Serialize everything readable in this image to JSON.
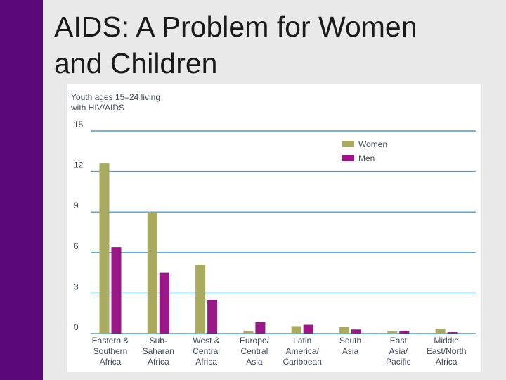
{
  "slide": {
    "title_line1": "AIDS: A Problem for Women",
    "title_line2": "and Children"
  },
  "colors": {
    "sidebar": "#5b087a",
    "women": "#a8ab60",
    "men": "#9a1787",
    "gridline": "#4a9fd3",
    "text": "#3d4a5a"
  },
  "chart_data": {
    "type": "bar",
    "ylabel_line1": "Youth ages 15–24 living",
    "ylabel_line2": "with HIV/AIDS",
    "ylim": [
      0,
      15
    ],
    "yticks": [
      "0",
      "3",
      "6",
      "9",
      "12",
      "15"
    ],
    "grid": true,
    "legend_position": "top-right",
    "categories": [
      [
        "Eastern &",
        "Southern",
        "Africa"
      ],
      [
        "Sub-",
        "Saharan",
        "Africa"
      ],
      [
        "West &",
        "Central",
        "Africa"
      ],
      [
        "Europe/",
        "Central",
        "Asia"
      ],
      [
        "Latin",
        "America/",
        "Caribbean"
      ],
      [
        "South",
        "Asia"
      ],
      [
        "East",
        "Asia/",
        "Pacific"
      ],
      [
        "Middle",
        "East/North",
        "Africa"
      ]
    ],
    "series": [
      {
        "name": "Women",
        "values": [
          12.6,
          9.0,
          5.1,
          0.2,
          0.55,
          0.5,
          0.2,
          0.35
        ]
      },
      {
        "name": "Men",
        "values": [
          6.4,
          4.5,
          2.5,
          0.85,
          0.65,
          0.3,
          0.2,
          0.1
        ]
      }
    ]
  }
}
